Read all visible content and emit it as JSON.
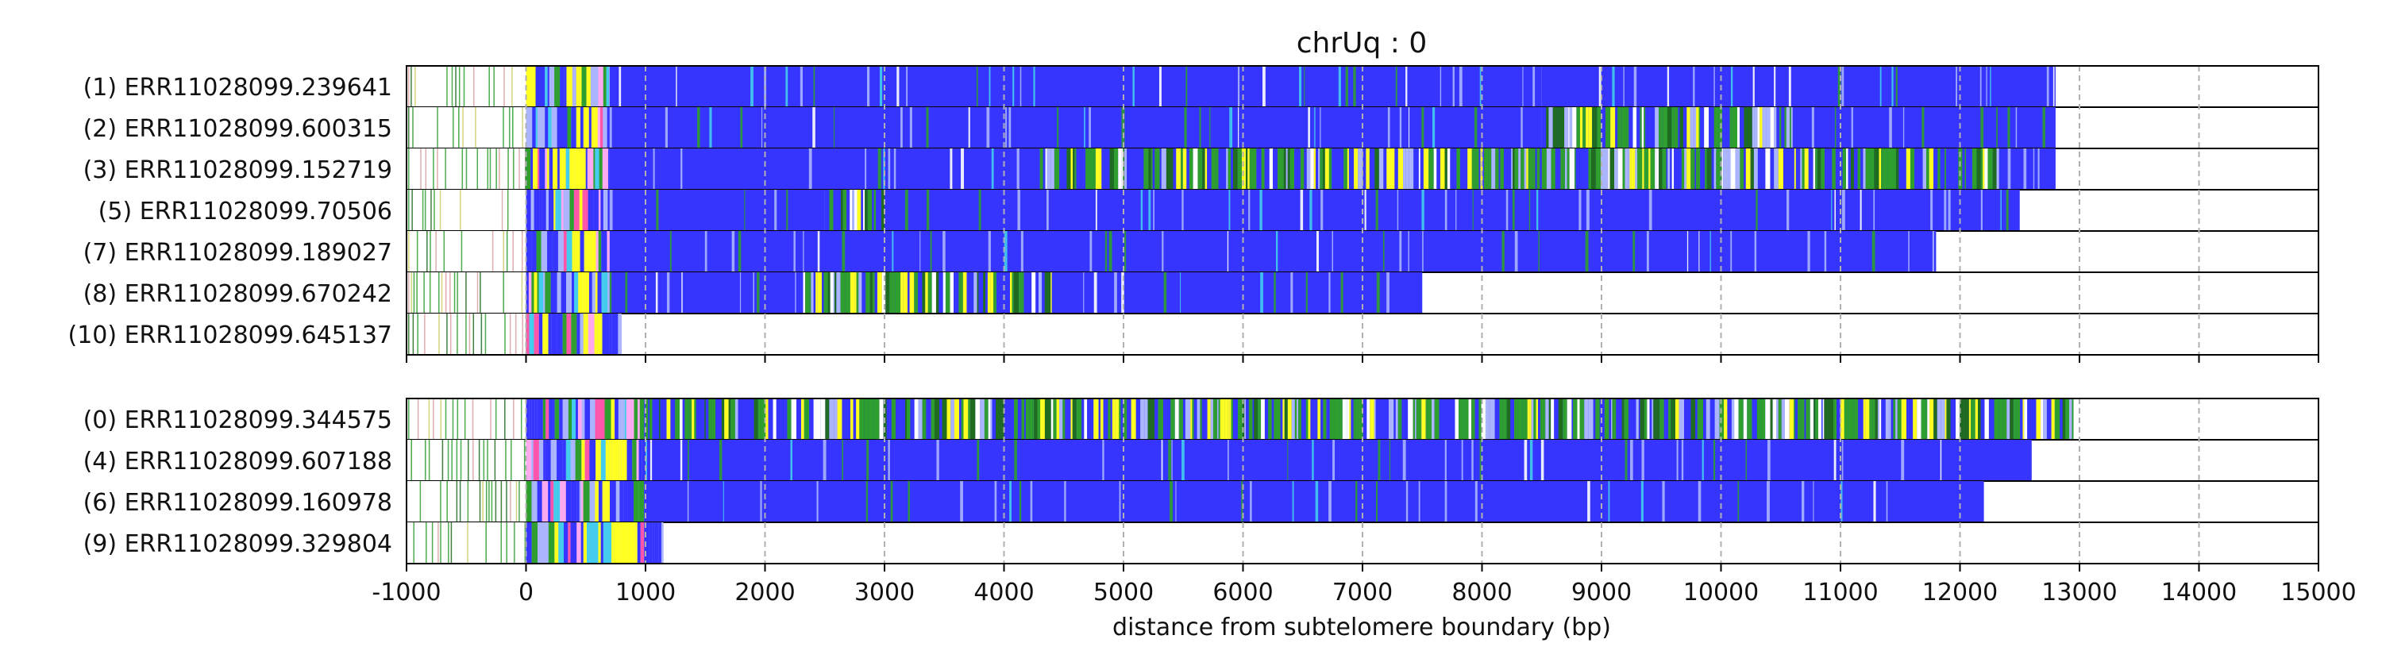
{
  "chart_data": {
    "type": "heatmap",
    "title": "chrUq : 0",
    "xlabel": "distance from subtelomere boundary (bp)",
    "xlim": [
      -1000,
      15000
    ],
    "xticks": [
      -1000,
      0,
      1000,
      2000,
      3000,
      4000,
      5000,
      6000,
      7000,
      8000,
      9000,
      10000,
      11000,
      12000,
      13000,
      14000,
      15000
    ],
    "grid": "vertical dashed at x ticks",
    "colors": {
      "blue": "#3535ff",
      "green": "#2e9e2e",
      "yellow": "#ffff22",
      "lightblue": "#aab4ff",
      "pink": "#ff55aa",
      "lightpink": "#ffaaf0",
      "cyan": "#44ccee",
      "darkgreen": "#1f6b1f",
      "white": "#ffffff"
    },
    "panels": [
      {
        "reads": [
          {
            "label": "(1) ERR11028099.239641",
            "end": 12800,
            "segments": [
              [
                -1000,
                0,
                "sub"
              ],
              [
                0,
                700,
                "lead"
              ],
              [
                700,
                8500,
                "blue"
              ],
              [
                8500,
                12800,
                "blue"
              ]
            ]
          },
          {
            "label": "(2) ERR11028099.600315",
            "end": 12800,
            "segments": [
              [
                -1000,
                0,
                "sub"
              ],
              [
                0,
                700,
                "lead"
              ],
              [
                700,
                8500,
                "blue"
              ],
              [
                8500,
                10600,
                "mixed"
              ],
              [
                10600,
                12800,
                "blue"
              ]
            ]
          },
          {
            "label": "(3) ERR11028099.152719",
            "end": 12800,
            "segments": [
              [
                -1000,
                0,
                "sub"
              ],
              [
                0,
                700,
                "lead"
              ],
              [
                700,
                4300,
                "blue"
              ],
              [
                4300,
                12400,
                "mixed"
              ],
              [
                12400,
                12800,
                "blue"
              ]
            ]
          },
          {
            "label": "(5) ERR11028099.70506",
            "end": 12500,
            "segments": [
              [
                -1000,
                0,
                "sub"
              ],
              [
                0,
                700,
                "lead"
              ],
              [
                700,
                2500,
                "blue"
              ],
              [
                2500,
                3000,
                "mixed"
              ],
              [
                3000,
                12500,
                "blue"
              ]
            ]
          },
          {
            "label": "(7) ERR11028099.189027",
            "end": 11800,
            "segments": [
              [
                -1000,
                0,
                "sub"
              ],
              [
                0,
                700,
                "lead"
              ],
              [
                700,
                11800,
                "blue"
              ]
            ]
          },
          {
            "label": "(8) ERR11028099.670242",
            "end": 7500,
            "segments": [
              [
                -1000,
                0,
                "sub"
              ],
              [
                0,
                700,
                "lead"
              ],
              [
                700,
                2300,
                "blue"
              ],
              [
                2300,
                4400,
                "mixed"
              ],
              [
                4400,
                7500,
                "blue"
              ]
            ]
          },
          {
            "label": "(10) ERR11028099.645137",
            "end": 800,
            "segments": [
              [
                -1000,
                0,
                "sub"
              ],
              [
                0,
                800,
                "lead"
              ]
            ]
          }
        ]
      },
      {
        "reads": [
          {
            "label": "(0) ERR11028099.344575",
            "end": 12950,
            "segments": [
              [
                -1000,
                0,
                "sub"
              ],
              [
                0,
                1000,
                "lead"
              ],
              [
                1000,
                12950,
                "mixed"
              ]
            ]
          },
          {
            "label": "(4) ERR11028099.607188",
            "end": 12600,
            "segments": [
              [
                -1000,
                0,
                "sub"
              ],
              [
                0,
                1000,
                "lead"
              ],
              [
                1000,
                12600,
                "blue"
              ]
            ]
          },
          {
            "label": "(6) ERR11028099.160978",
            "end": 12200,
            "segments": [
              [
                -1000,
                0,
                "sub"
              ],
              [
                0,
                1000,
                "lead"
              ],
              [
                1000,
                12200,
                "blue"
              ]
            ]
          },
          {
            "label": "(9) ERR11028099.329804",
            "end": 1150,
            "segments": [
              [
                -1000,
                0,
                "sub"
              ],
              [
                0,
                1150,
                "lead"
              ]
            ]
          }
        ]
      }
    ]
  }
}
